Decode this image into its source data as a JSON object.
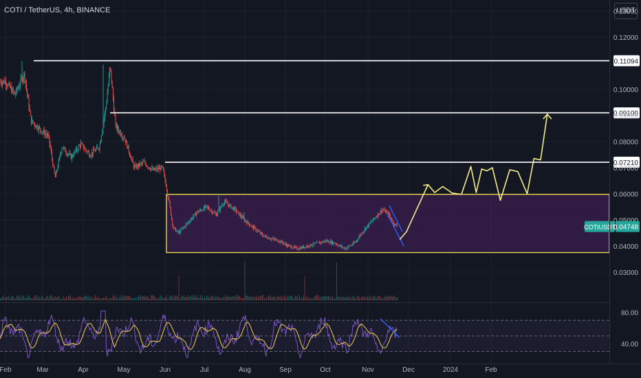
{
  "header": {
    "symbol_title": "COTI / TetherUS, 4h, BINANCE",
    "currency_label": "USDT"
  },
  "colors": {
    "background": "#131722",
    "grid": "#1c2030",
    "candle_up": "#26a69a",
    "candle_down": "#ef5350",
    "level_line": "#ffffff",
    "range_fill": "#3b1f4f",
    "range_border": "#f2e14b",
    "projection": "#f7ef8a",
    "channel_line": "#2962ff",
    "rsi_line": "#7e57c2",
    "rsi_ma": "#f5d24a",
    "last_price_badge": "#26a69a"
  },
  "chart_data": {
    "type": "line",
    "title": "COTI / TetherUS, 4h, BINANCE",
    "x_ticks": [
      "Feb",
      "Mar",
      "Apr",
      "May",
      "Jun",
      "Jul",
      "Aug",
      "Sep",
      "Oct",
      "Nov",
      "Dec",
      "2024",
      "Feb"
    ],
    "price_ticks": [
      "0.13000",
      "0.12000",
      "0.10000",
      "0.09000",
      "0.08000",
      "0.07000",
      "0.06000",
      "0.05000",
      "0.04000",
      "0.03000"
    ],
    "price_tick_values": [
      0.13,
      0.12,
      0.1,
      0.09,
      0.08,
      0.07,
      0.06,
      0.05,
      0.04,
      0.03
    ],
    "ylim": [
      0.0235,
      0.133
    ],
    "price_line_x": [
      "2023-02-01",
      "2023-02-08",
      "2023-02-15",
      "2023-02-20",
      "2023-02-26",
      "2023-03-05",
      "2023-03-10",
      "2023-03-15",
      "2023-03-22",
      "2023-03-29",
      "2023-04-05",
      "2023-04-12",
      "2023-04-17",
      "2023-04-20",
      "2023-04-24",
      "2023-05-01",
      "2023-05-08",
      "2023-05-15",
      "2023-05-22",
      "2023-05-29",
      "2023-06-02",
      "2023-06-06",
      "2023-06-10",
      "2023-06-17",
      "2023-06-24",
      "2023-07-01",
      "2023-07-08",
      "2023-07-14",
      "2023-07-22",
      "2023-07-29",
      "2023-08-05",
      "2023-08-12",
      "2023-08-17",
      "2023-08-24",
      "2023-08-31",
      "2023-09-07",
      "2023-09-14",
      "2023-09-21",
      "2023-09-28",
      "2023-10-05",
      "2023-10-12",
      "2023-10-19",
      "2023-10-26",
      "2023-11-02",
      "2023-11-09",
      "2023-11-14",
      "2023-11-17",
      "2023-11-21"
    ],
    "price_line_y": [
      0.103,
      0.098,
      0.106,
      0.088,
      0.085,
      0.082,
      0.066,
      0.078,
      0.074,
      0.079,
      0.075,
      0.078,
      0.094,
      0.109,
      0.086,
      0.081,
      0.07,
      0.072,
      0.069,
      0.07,
      0.06,
      0.047,
      0.045,
      0.049,
      0.053,
      0.055,
      0.052,
      0.057,
      0.054,
      0.05,
      0.047,
      0.044,
      0.043,
      0.042,
      0.04,
      0.039,
      0.04,
      0.041,
      0.042,
      0.041,
      0.039,
      0.041,
      0.046,
      0.05,
      0.054,
      0.052,
      0.049,
      0.047
    ],
    "rsi_ticks": [
      "80.00",
      "40.00"
    ],
    "rsi_tick_values": [
      80,
      40
    ],
    "rsi_range": [
      20,
      85
    ],
    "rsi_band": [
      30,
      70
    ],
    "horizontal_levels": [
      {
        "label": "0.11094",
        "value": 0.11094,
        "from": "2023-02-22"
      },
      {
        "label": "0.09100",
        "value": 0.091,
        "from": "2023-04-20"
      },
      {
        "label": "0.07210",
        "value": 0.0721,
        "from": "2023-05-31"
      }
    ],
    "range_box": {
      "from": "2023-06-01",
      "to_edge": true,
      "top": 0.0598,
      "bottom": 0.0375
    },
    "falling_channel": {
      "upper": [
        [
          "2023-11-14",
          0.0556
        ],
        [
          "2023-11-24",
          0.0455
        ]
      ],
      "lower": [
        [
          "2023-11-13",
          0.052
        ],
        [
          "2023-11-25",
          0.04
        ]
      ]
    },
    "projection_path": {
      "x": [
        "2023-11-22",
        "2023-11-27",
        "2023-12-05",
        "2023-12-13",
        "2023-12-18",
        "2023-12-24",
        "2023-12-31",
        "2024-01-07",
        "2024-01-14",
        "2024-01-18",
        "2024-01-22",
        "2024-01-26",
        "2024-01-30",
        "2024-02-05",
        "2024-02-12",
        "2024-02-18",
        "2024-02-25",
        "2024-03-01",
        "2024-03-06",
        "2024-03-11"
      ],
      "y": [
        0.0425,
        0.0455,
        0.0545,
        0.0635,
        0.0605,
        0.0628,
        0.0603,
        0.0598,
        0.0705,
        0.0605,
        0.0695,
        0.0688,
        0.07,
        0.0575,
        0.0692,
        0.0685,
        0.06,
        0.0735,
        0.073,
        0.0905
      ]
    },
    "last_price": {
      "symbol": "COTIUSDT",
      "value": "0.04748"
    }
  }
}
